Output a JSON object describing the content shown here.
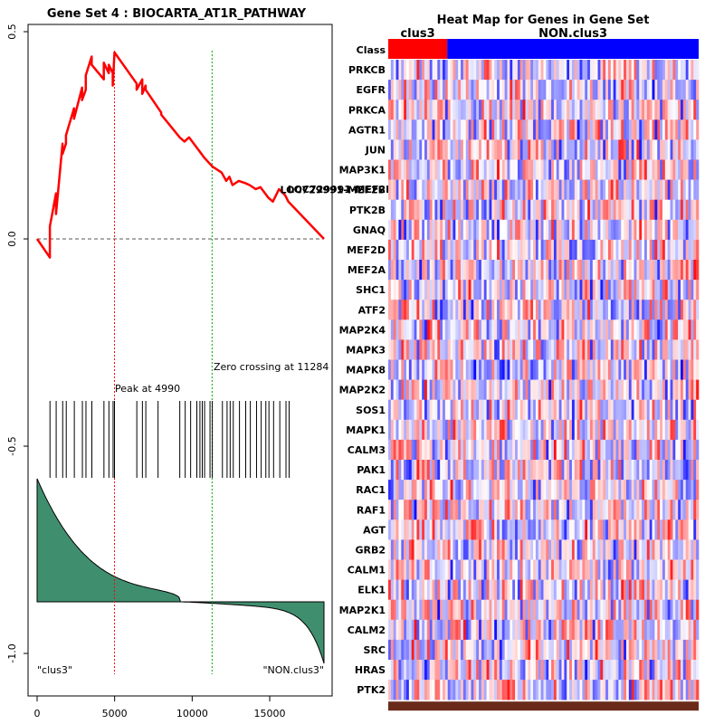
{
  "left_plot": {
    "title": "Gene Set  4 : BIOCARTA_AT1R_PATHWAY",
    "x_ticks": [
      0,
      5000,
      10000,
      15000
    ],
    "x_tick_labels": [
      "0",
      "5000",
      "10000",
      "15000"
    ],
    "y_ticks": [
      0.5,
      0.0,
      -0.5,
      -1.0
    ],
    "y_tick_labels": [
      "0.5",
      "0.0",
      "-0.5",
      "-1.0"
    ],
    "peak_label": "Peak at 4990",
    "peak_position": 4990,
    "zero_crossing_label": "Zero crossing at 11284",
    "zero_crossing_position": 11284,
    "left_class_label": "\"clus3\"",
    "right_class_label": "\"NON.clus3\"",
    "last_gene_label": "LOC729991-MEF2B",
    "colors": {
      "es_line": "#ff0000",
      "peak_line": "#ff0000",
      "zero_line": "#00aa00",
      "ranked_fill": "#3f8f6f"
    }
  },
  "chart_data": {
    "type": "line",
    "title": "Gene Set  4 : BIOCARTA_AT1R_PATHWAY",
    "xlabel": "",
    "ylabel": "",
    "xlim": [
      0,
      18500
    ],
    "ylim": [
      -1.05,
      0.52
    ],
    "enrichment_score": {
      "x": [
        0,
        820,
        820,
        1220,
        1220,
        1640,
        1640,
        1860,
        1860,
        2380,
        2380,
        2900,
        2900,
        3140,
        3140,
        3520,
        3520,
        4300,
        4300,
        4620,
        4620,
        4880,
        4880,
        4990,
        6420,
        6420,
        6780,
        6780,
        7000,
        7000,
        8000,
        8000,
        9200,
        9500,
        9800,
        10300,
        10500,
        10800,
        11300,
        11900,
        12200,
        12400,
        12600,
        13000,
        13400,
        13700,
        14100,
        14400,
        14700,
        14900,
        15200,
        15600,
        16000,
        16200,
        18500
      ],
      "y": [
        0,
        -0.045,
        0.03,
        0.11,
        0.06,
        0.23,
        0.205,
        0.23,
        0.25,
        0.315,
        0.29,
        0.365,
        0.335,
        0.36,
        0.395,
        0.44,
        0.42,
        0.385,
        0.425,
        0.4,
        0.42,
        0.4,
        0.37,
        0.45,
        0.375,
        0.36,
        0.385,
        0.35,
        0.37,
        0.36,
        0.305,
        0.3,
        0.245,
        0.235,
        0.245,
        0.22,
        0.21,
        0.195,
        0.175,
        0.16,
        0.14,
        0.15,
        0.13,
        0.14,
        0.135,
        0.13,
        0.12,
        0.125,
        0.11,
        0.1,
        0.09,
        0.12,
        0.105,
        0.09,
        0.0
      ]
    },
    "hit_positions": [
      830,
      1230,
      1650,
      1880,
      2400,
      2920,
      3150,
      3530,
      4310,
      4630,
      4900,
      4990,
      6430,
      6790,
      7010,
      7800,
      9200,
      9550,
      9900,
      10300,
      10500,
      10650,
      10800,
      11150,
      11300,
      11950,
      12250,
      12450,
      12650,
      13050,
      13450,
      13750,
      14150,
      14450,
      14750,
      14950,
      15250,
      15650,
      16050,
      16250
    ],
    "ranked_metric": {
      "description": "decreasing ranked list metric, drawn as filled area about a baseline",
      "start_value": 1.0,
      "end_value": -0.5
    }
  },
  "heatmap": {
    "title": "Heat Map for Genes in Gene Set",
    "class_row_label": "Class",
    "class_groups": [
      {
        "name": "clus3",
        "fraction": 0.19,
        "color": "#ff0000"
      },
      {
        "name": "NON.clus3",
        "fraction": 0.81,
        "color": "#0000ff"
      }
    ],
    "genes": [
      "PRKCB",
      "EGFR",
      "PRKCA",
      "AGTR1",
      "JUN",
      "MAP3K1",
      "LOC729991-MEF2B",
      "PTK2B",
      "GNAQ",
      "MEF2D",
      "MEF2A",
      "SHC1",
      "ATF2",
      "MAP2K4",
      "MAPK3",
      "MAPK8",
      "MAP2K2",
      "SOS1",
      "MAPK1",
      "CALM3",
      "PAK1",
      "RAC1",
      "RAF1",
      "AGT",
      "GRB2",
      "CALM1",
      "ELK1",
      "MAP2K1",
      "CALM2",
      "SRC",
      "HRAS",
      "PTK2"
    ],
    "colors": {
      "high": "#ff0000",
      "low": "#0000ff",
      "mid": "#ffffff",
      "bottom_strip": "#6b2b1a"
    }
  }
}
